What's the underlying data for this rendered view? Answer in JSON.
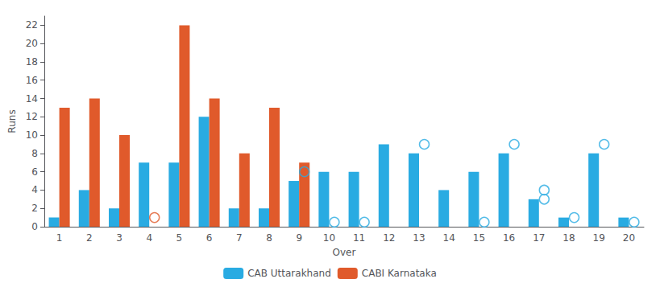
{
  "chart_data": {
    "type": "bar",
    "categories": [
      "1",
      "2",
      "3",
      "4",
      "5",
      "6",
      "7",
      "8",
      "9",
      "10",
      "11",
      "12",
      "13",
      "14",
      "15",
      "16",
      "17",
      "18",
      "19",
      "20"
    ],
    "series": [
      {
        "name": "CAB Uttarakhand",
        "color": "#29abe2",
        "values": [
          1,
          4,
          2,
          7,
          7,
          12,
          2,
          2,
          5,
          6,
          6,
          9,
          8,
          4,
          6,
          8,
          3,
          1,
          8,
          1
        ]
      },
      {
        "name": "CABI Karnataka",
        "color": "#e05a2b",
        "values": [
          13,
          14,
          10,
          0,
          22,
          14,
          8,
          13,
          7,
          0,
          0,
          0,
          0,
          0,
          0,
          0,
          0,
          0,
          0,
          0
        ]
      }
    ],
    "circles": [
      {
        "x": "4",
        "y": 1,
        "color": "#e05a2b"
      },
      {
        "x": "9",
        "y": 6,
        "color": "#29abe2"
      },
      {
        "x": "10",
        "y": 0.5,
        "color": "#29abe2"
      },
      {
        "x": "11",
        "y": 0.5,
        "color": "#29abe2"
      },
      {
        "x": "13",
        "y": 9,
        "color": "#29abe2"
      },
      {
        "x": "15",
        "y": 0.5,
        "color": "#29abe2"
      },
      {
        "x": "16",
        "y": 9,
        "color": "#29abe2"
      },
      {
        "x": "17",
        "y": 4,
        "color": "#29abe2"
      },
      {
        "x": "17",
        "y": 3,
        "color": "#29abe2"
      },
      {
        "x": "18",
        "y": 1,
        "color": "#29abe2"
      },
      {
        "x": "19",
        "y": 9,
        "color": "#29abe2"
      },
      {
        "x": "20",
        "y": 0.5,
        "color": "#29abe2"
      }
    ],
    "xlabel": "Over",
    "ylabel": "Runs",
    "ylim": [
      0,
      23
    ],
    "yticks": [
      0,
      2,
      4,
      6,
      8,
      10,
      12,
      14,
      16,
      18,
      20,
      22
    ],
    "grid": false,
    "legend": "bottom"
  }
}
